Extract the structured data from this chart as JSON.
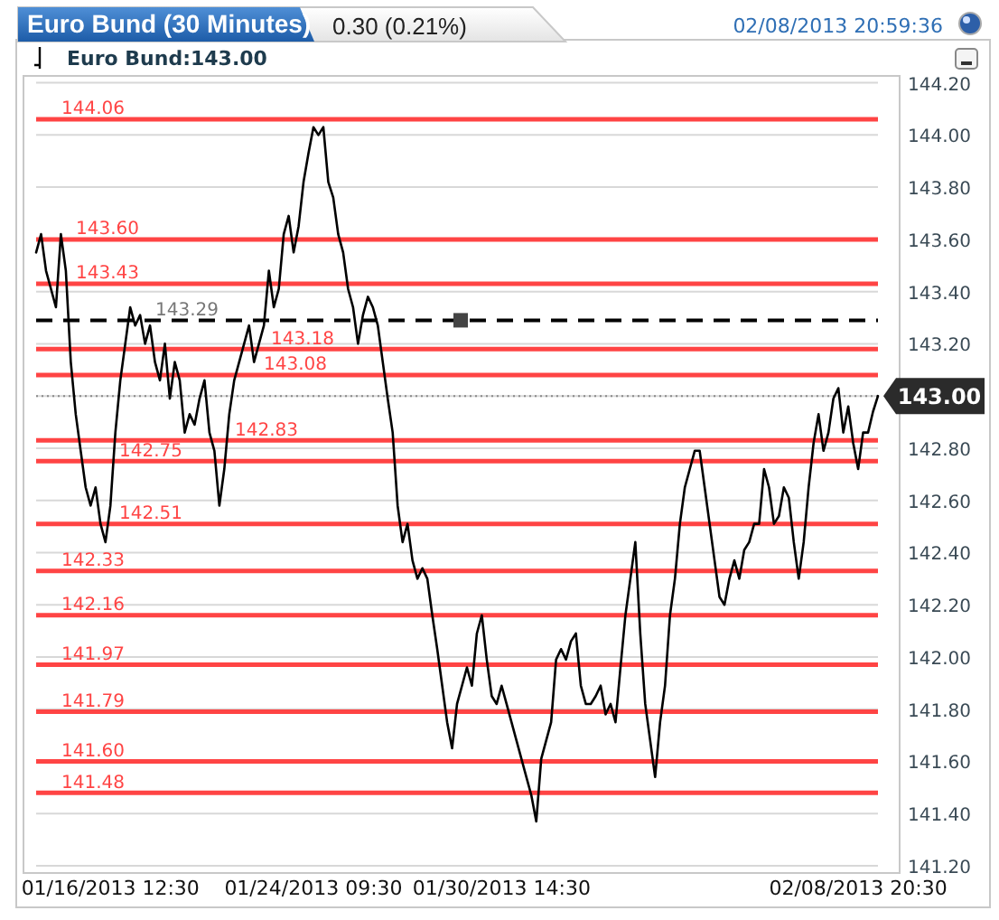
{
  "chart_data": {
    "type": "line",
    "title": "Euro Bund (30 Minutes)",
    "subtitle": "0.30 (0.21%)",
    "annotations": [
      "02/08/2013 20:59:36",
      "Euro Bund:143.00"
    ],
    "categories": [
      null,
      null,
      null,
      null,
      null,
      null,
      null,
      null,
      null,
      null,
      null,
      null,
      null,
      null,
      null,
      "01/16/2013 12:30",
      null,
      null,
      null,
      null,
      null,
      null,
      null,
      null,
      null,
      null,
      null,
      null,
      null,
      null,
      null,
      null,
      null,
      null,
      null,
      null,
      null,
      null,
      null,
      null,
      null,
      null,
      null,
      null,
      null,
      null,
      null,
      null,
      null,
      null,
      null,
      null,
      null,
      null,
      null,
      null,
      "01/24/2013 09:30",
      null,
      null,
      null,
      null,
      null,
      null,
      null,
      null,
      null,
      null,
      null,
      null,
      null,
      null,
      null,
      null,
      null,
      null,
      null,
      null,
      null,
      null,
      null,
      null,
      null,
      null,
      null,
      null,
      null,
      null,
      null,
      null,
      null,
      null,
      null,
      null,
      null,
      "01/30/2013 14:30",
      null,
      null,
      null,
      null,
      null,
      null,
      null,
      null,
      null,
      null,
      null,
      null,
      null,
      null,
      null,
      null,
      null,
      null,
      null,
      null,
      null,
      null,
      null,
      null,
      null,
      null,
      null,
      null,
      null,
      null,
      null,
      null,
      null,
      null,
      null,
      null,
      null,
      null,
      null,
      null,
      null,
      null,
      null,
      null,
      null,
      null,
      null,
      null,
      null,
      null,
      null,
      null,
      null,
      null,
      null,
      null,
      null,
      null,
      null,
      null,
      null,
      null,
      null,
      null,
      null,
      null,
      null,
      null,
      null,
      null,
      null,
      "02/08/2013 20:30",
      null,
      null,
      null,
      null
    ],
    "series": [
      {
        "color": "#000000",
        "values": [
          143.55,
          143.62,
          143.48,
          143.41,
          143.34,
          143.62,
          143.48,
          143.13,
          142.93,
          142.79,
          142.65,
          142.58,
          142.65,
          142.51,
          142.44,
          142.58,
          142.86,
          143.06,
          143.2,
          143.34,
          143.27,
          143.31,
          143.2,
          143.27,
          143.13,
          143.06,
          143.2,
          142.99,
          143.13,
          143.06,
          142.86,
          142.93,
          142.89,
          142.99,
          143.06,
          142.86,
          142.79,
          142.58,
          142.72,
          142.93,
          143.06,
          143.13,
          143.2,
          143.27,
          143.13,
          143.2,
          143.27,
          143.48,
          143.34,
          143.41,
          143.62,
          143.69,
          143.55,
          143.65,
          143.82,
          143.93,
          144.03,
          144.0,
          144.03,
          143.82,
          143.76,
          143.62,
          143.55,
          143.41,
          143.34,
          143.2,
          143.31,
          143.38,
          143.34,
          143.27,
          143.13,
          142.99,
          142.86,
          142.58,
          142.44,
          142.51,
          142.37,
          142.3,
          142.34,
          142.3,
          142.16,
          142.03,
          141.89,
          141.75,
          141.65,
          141.82,
          141.89,
          141.96,
          141.89,
          142.09,
          142.16,
          141.99,
          141.85,
          141.82,
          141.89,
          141.82,
          141.75,
          141.68,
          141.61,
          141.54,
          141.47,
          141.37,
          141.61,
          141.68,
          141.75,
          141.99,
          142.03,
          141.99,
          142.06,
          142.09,
          141.89,
          141.82,
          141.82,
          141.85,
          141.89,
          141.78,
          141.82,
          141.75,
          141.96,
          142.16,
          142.3,
          142.44,
          142.09,
          141.82,
          141.68,
          141.54,
          141.75,
          141.89,
          142.16,
          142.3,
          142.51,
          142.65,
          142.72,
          142.79,
          142.79,
          142.65,
          142.51,
          142.37,
          142.23,
          142.2,
          142.3,
          142.37,
          142.3,
          142.41,
          142.44,
          142.51,
          142.51,
          142.72,
          142.65,
          142.51,
          142.54,
          142.65,
          142.61,
          142.44,
          142.3,
          142.44,
          142.65,
          142.82,
          142.93,
          142.79,
          142.86,
          142.99,
          143.03,
          142.86,
          142.96,
          142.82,
          142.72,
          142.86,
          142.86,
          142.94,
          143.0
        ]
      }
    ],
    "ylim": [
      141.2,
      144.2
    ],
    "yticks": [
      {
        "value": 141.2,
        "label": "141.20"
      },
      {
        "value": 141.4,
        "label": "141.40"
      },
      {
        "value": 141.6,
        "label": "141.60"
      },
      {
        "value": 141.8,
        "label": "141.80"
      },
      {
        "value": 142.0,
        "label": "142.00"
      },
      {
        "value": 142.2,
        "label": "142.20"
      },
      {
        "value": 142.4,
        "label": "142.40"
      },
      {
        "value": 142.6,
        "label": "142.60"
      },
      {
        "value": 142.8,
        "label": "142.80"
      },
      {
        "value": 143.0,
        "label": null
      },
      {
        "value": 143.2,
        "label": "143.20"
      },
      {
        "value": 143.4,
        "label": "143.40"
      },
      {
        "value": 143.6,
        "label": "143.60"
      },
      {
        "value": 143.8,
        "label": "143.80"
      },
      {
        "value": 144.0,
        "label": "144.00"
      },
      {
        "value": 144.2,
        "label": "144.20"
      }
    ],
    "grid": "y",
    "line_style": "solid",
    "marker": "none",
    "ref_lines": [
      {
        "axis": "y",
        "value": 144.06,
        "label": "144.06",
        "color": "#ff4444"
      },
      {
        "axis": "y",
        "value": 143.6,
        "label": "143.60",
        "color": "#ff4444"
      },
      {
        "axis": "y",
        "value": 143.43,
        "label": "143.43",
        "color": "#ff4444"
      },
      {
        "axis": "y",
        "value": 143.29,
        "label": "143.29",
        "color": "#000000",
        "line_style": "dashed"
      },
      {
        "axis": "y",
        "value": 143.18,
        "label": "143.18",
        "color": "#ff4444"
      },
      {
        "axis": "y",
        "value": 143.08,
        "label": "143.08",
        "color": "#ff4444"
      },
      {
        "axis": "y",
        "value": 143.0,
        "label": "143.00",
        "color": "#888888",
        "line_style": "dotted"
      },
      {
        "axis": "y",
        "value": 142.83,
        "label": "142.83",
        "color": "#ff4444"
      },
      {
        "axis": "y",
        "value": 142.75,
        "label": "142.75",
        "color": "#ff4444"
      },
      {
        "axis": "y",
        "value": 142.51,
        "label": "142.51",
        "color": "#ff4444"
      },
      {
        "axis": "y",
        "value": 142.33,
        "label": "142.33",
        "color": "#ff4444"
      },
      {
        "axis": "y",
        "value": 142.16,
        "label": "142.16",
        "color": "#ff4444"
      },
      {
        "axis": "y",
        "value": 141.97,
        "label": "141.97",
        "color": "#ff4444"
      },
      {
        "axis": "y",
        "value": 141.79,
        "label": "141.79",
        "color": "#ff4444"
      },
      {
        "axis": "y",
        "value": 141.6,
        "label": "141.60",
        "color": "#ff4444"
      },
      {
        "axis": "y",
        "value": 141.48,
        "label": "141.48",
        "color": "#ff4444"
      }
    ]
  }
}
